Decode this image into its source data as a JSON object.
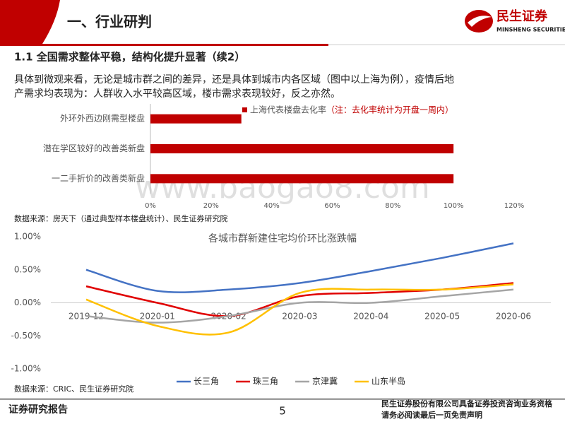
{
  "header": {
    "title": "一、行业研判",
    "logo_cn": "民生证券",
    "logo_en": "MINSHENG SECURITIES"
  },
  "section_title": "1.1 全国需求整体平稳，结构化提升显著（续2）",
  "paragraph": [
    "具体到微观来看，无论是城市群之间的差异，还是具体到城市内各区域（图中以上海为例），疫情后地",
    "产需求均表现为：人群收入水平较高区域，楼市需求表现较好，反之亦然。"
  ],
  "chart_data": [
    {
      "type": "bar",
      "orientation": "horizontal",
      "categories": [
        "外环外西边刚需型楼盘",
        "潜在学区较好的改善类新盘",
        "一二手折价的改善类新盘"
      ],
      "series": [
        {
          "name": "上海代表楼盘去化率",
          "color": "#c00000",
          "values": [
            30,
            100,
            100
          ]
        }
      ],
      "annotation": "（注：去化率统计为开盘一周内）",
      "xlim": [
        0,
        120
      ],
      "xticks": [
        {
          "value": 0,
          "label": "0%"
        },
        {
          "value": 20,
          "label": "20%"
        },
        {
          "value": 40,
          "label": "40%"
        },
        {
          "value": 60,
          "label": "60%"
        },
        {
          "value": 80,
          "label": "80%"
        },
        {
          "value": 100,
          "label": "100%"
        },
        {
          "value": 120,
          "label": "120%"
        }
      ],
      "grid": false
    },
    {
      "type": "line",
      "title": "各城市群新建住宅均价环比涨跌幅",
      "categories": [
        "2019-12",
        "2020-01",
        "2020-02",
        "2020-03",
        "2020-04",
        "2020-05",
        "2020-06"
      ],
      "series": [
        {
          "name": "长三角",
          "color": "#4472c4",
          "values": [
            0.5,
            0.18,
            0.2,
            0.3,
            0.48,
            0.68,
            0.9
          ]
        },
        {
          "name": "珠三角",
          "color": "#e00000",
          "values": [
            0.25,
            0.0,
            -0.2,
            0.1,
            0.15,
            0.2,
            0.3
          ]
        },
        {
          "name": "京津冀",
          "color": "#a5a5a5",
          "values": [
            -0.2,
            -0.3,
            -0.2,
            0.0,
            0.0,
            0.1,
            0.2
          ]
        },
        {
          "name": "山东半岛",
          "color": "#ffc000",
          "values": [
            0.05,
            -0.35,
            -0.45,
            0.15,
            0.2,
            0.2,
            0.28
          ]
        }
      ],
      "ylim": [
        -1,
        1
      ],
      "yticks": [
        {
          "value": 1,
          "label": "1.00%"
        },
        {
          "value": 0.5,
          "label": "0.50%"
        },
        {
          "value": 0,
          "label": "0.00%"
        },
        {
          "value": -0.5,
          "label": "-0.50%"
        },
        {
          "value": -1,
          "label": "-1.00%"
        }
      ],
      "grid": false,
      "legend": "bottom"
    }
  ],
  "sources": [
    "数据来源：房天下（通过典型样本楼盘统计）、民生证券研究院",
    "数据来源：CRIC、民生证券研究院"
  ],
  "watermark": "www.baogao8.com",
  "footer": {
    "left": "证券研究报告",
    "page": "5",
    "right": [
      "民生证券股份有限公司具备证券投资咨询业务资格",
      "请务必阅读最后一页免责声明"
    ]
  }
}
